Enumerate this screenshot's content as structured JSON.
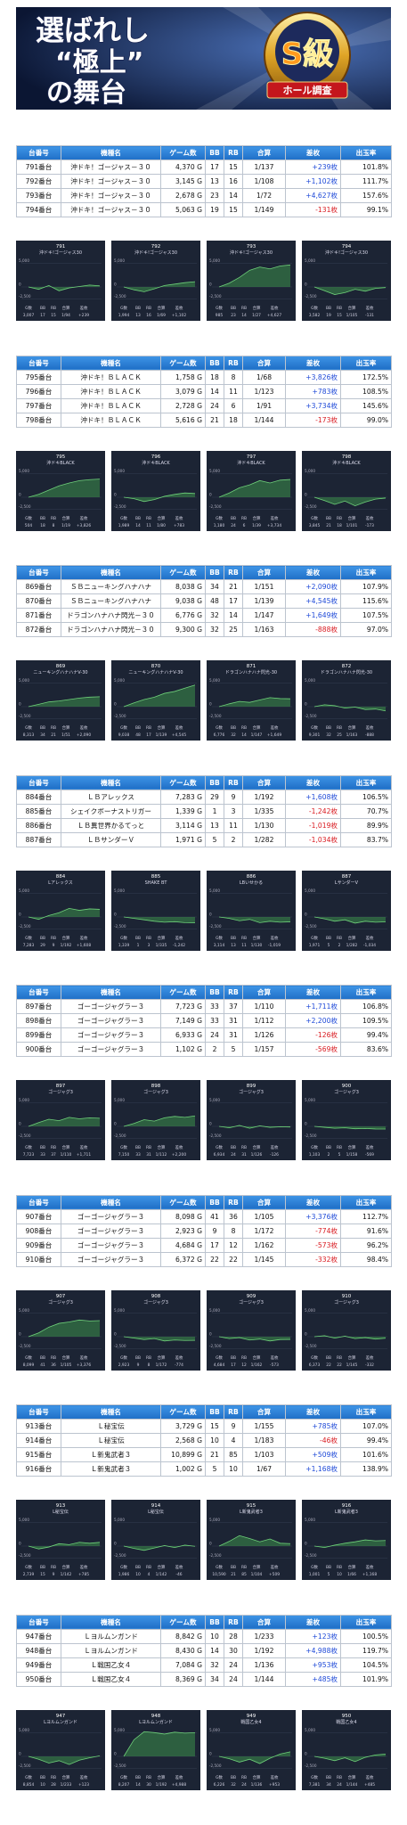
{
  "banner": {
    "line1": "選ばれし",
    "line2": "“極上”",
    "line3": "の舞台",
    "badge": "S級",
    "badge_sub": "ホール調査"
  },
  "table_header": [
    "台番号",
    "機種名",
    "ゲーム数",
    "BB",
    "RB",
    "合算",
    "差枚",
    "出玉率"
  ],
  "graph_footer_header": [
    "G数",
    "BB",
    "RB",
    "合算",
    "差枚"
  ],
  "graph_axis": {
    "ylim": [
      -3000,
      6000
    ],
    "yticks": [
      {
        "value": 5000,
        "label": "5,000"
      },
      0,
      {
        "value": -2500,
        "label": "-2,500"
      }
    ]
  },
  "groups": [
    {
      "rows": [
        [
          "791番台",
          "沖ドキ！ゴージャス－３０",
          "4,370 G",
          "17",
          "15",
          "1/137",
          "+239枚",
          "101.8%"
        ],
        [
          "792番台",
          "沖ドキ！ゴージャス－３０",
          "3,145 G",
          "13",
          "16",
          "1/108",
          "+1,102枚",
          "111.7%"
        ],
        [
          "793番台",
          "沖ドキ！ゴージャス－３０",
          "2,678 G",
          "23",
          "14",
          "1/72",
          "+4,627枚",
          "157.6%"
        ],
        [
          "794番台",
          "沖ドキ！ゴージャス－３０",
          "5,063 G",
          "19",
          "15",
          "1/149",
          "-131枚",
          "99.1%"
        ]
      ],
      "graphs": [
        {
          "id": "791",
          "name": "沖ドキ!ゴージャス30",
          "footer": [
            "3,007",
            "17",
            "15",
            "1/94",
            "+239"
          ],
          "line": [
            0,
            -500,
            300,
            -800,
            -200,
            100,
            400,
            239
          ]
        },
        {
          "id": "792",
          "name": "沖ドキ!ゴージャス30",
          "footer": [
            "1,994",
            "13",
            "16",
            "1/69",
            "+1,102"
          ],
          "line": [
            0,
            -600,
            -1000,
            -400,
            300,
            600,
            900,
            1102
          ]
        },
        {
          "id": "793",
          "name": "沖ドキ!ゴージャス30",
          "footer": [
            "985",
            "23",
            "14",
            "1/27",
            "+4,627"
          ],
          "line": [
            0,
            800,
            2000,
            3500,
            4200,
            3800,
            4400,
            4627
          ]
        },
        {
          "id": "794",
          "name": "沖ドキ!ゴージャス30",
          "footer": [
            "3,582",
            "19",
            "15",
            "1/105",
            "-131"
          ],
          "line": [
            0,
            -800,
            -1600,
            -1200,
            -500,
            -900,
            -300,
            -131
          ]
        }
      ]
    },
    {
      "rows": [
        [
          "795番台",
          "沖ドキ！ＢＬＡＣＫ",
          "1,758 G",
          "18",
          "8",
          "1/68",
          "+3,826枚",
          "172.5%"
        ],
        [
          "796番台",
          "沖ドキ！ＢＬＡＣＫ",
          "3,079 G",
          "14",
          "11",
          "1/123",
          "+783枚",
          "108.5%"
        ],
        [
          "797番台",
          "沖ドキ！ＢＬＡＣＫ",
          "2,728 G",
          "24",
          "6",
          "1/91",
          "+3,734枚",
          "145.6%"
        ],
        [
          "798番台",
          "沖ドキ！ＢＬＡＣＫ",
          "5,616 G",
          "21",
          "18",
          "1/144",
          "-173枚",
          "99.0%"
        ]
      ],
      "graphs": [
        {
          "id": "795",
          "name": "沖ドキBLACK",
          "footer": [
            "504",
            "18",
            "8",
            "1/19",
            "+3,826"
          ],
          "line": [
            0,
            600,
            1500,
            2400,
            3000,
            3500,
            3700,
            3826
          ]
        },
        {
          "id": "796",
          "name": "沖ドキBLACK",
          "footer": [
            "1,989",
            "14",
            "11",
            "1/80",
            "+783"
          ],
          "line": [
            0,
            -300,
            -900,
            -500,
            200,
            600,
            900,
            783
          ]
        },
        {
          "id": "797",
          "name": "沖ドキBLACK",
          "footer": [
            "1,180",
            "24",
            "6",
            "1/39",
            "+3,734"
          ],
          "line": [
            0,
            900,
            2000,
            2600,
            3500,
            3000,
            3600,
            3734
          ]
        },
        {
          "id": "798",
          "name": "沖ドキBLACK",
          "footer": [
            "3,845",
            "21",
            "18",
            "1/101",
            "-173"
          ],
          "line": [
            0,
            -700,
            -1500,
            -800,
            -1800,
            -1000,
            -400,
            -173
          ]
        }
      ]
    },
    {
      "rows": [
        [
          "869番台",
          "ＳＢニューキングハナハナ",
          "8,038 G",
          "34",
          "21",
          "1/151",
          "+2,090枚",
          "107.9%"
        ],
        [
          "870番台",
          "ＳＢニューキングハナハナ",
          "9,038 G",
          "48",
          "17",
          "1/139",
          "+4,545枚",
          "115.6%"
        ],
        [
          "871番台",
          "ドラゴンハナハナ閃光－３０",
          "6,776 G",
          "32",
          "14",
          "1/147",
          "+1,649枚",
          "107.5%"
        ],
        [
          "872番台",
          "ドラゴンハナハナ閃光－３０",
          "9,300 G",
          "32",
          "25",
          "1/163",
          "-888枚",
          "97.0%"
        ]
      ],
      "graphs": [
        {
          "id": "869",
          "name": "ニューキングハナハナV-30",
          "footer": [
            "8,313",
            "34",
            "21",
            "1/51",
            "+2,090"
          ],
          "line": [
            0,
            500,
            1000,
            1200,
            1500,
            1800,
            2000,
            2090
          ]
        },
        {
          "id": "870",
          "name": "ニューキングハナハナV-30",
          "footer": [
            "9,038",
            "48",
            "17",
            "1/139",
            "+4,545"
          ],
          "line": [
            0,
            800,
            1500,
            2000,
            2800,
            3200,
            3900,
            4545
          ]
        },
        {
          "id": "871",
          "name": "ドラゴンハナハナ閃光-30",
          "footer": [
            "6,776",
            "32",
            "14",
            "1/147",
            "+1,649"
          ],
          "line": [
            0,
            600,
            1100,
            900,
            1400,
            1900,
            1700,
            1649
          ]
        },
        {
          "id": "872",
          "name": "ドラゴンハナハナ閃光-30",
          "footer": [
            "9,301",
            "32",
            "25",
            "1/163",
            "-888"
          ],
          "line": [
            0,
            400,
            200,
            -300,
            -100,
            -600,
            -500,
            -888
          ]
        }
      ]
    },
    {
      "rows": [
        [
          "884番台",
          "ＬＢアレックス",
          "7,283 G",
          "29",
          "9",
          "1/192",
          "+1,608枚",
          "106.5%"
        ],
        [
          "885番台",
          "シェイクボーナストリガー",
          "1,339 G",
          "1",
          "3",
          "1/335",
          "-1,242枚",
          "70.7%"
        ],
        [
          "886番台",
          "ＬＢ異世界かるてっと",
          "3,114 G",
          "13",
          "11",
          "1/130",
          "-1,019枚",
          "89.9%"
        ],
        [
          "887番台",
          "ＬＢサンダーＶ",
          "1,971 G",
          "5",
          "2",
          "1/282",
          "-1,034枚",
          "83.7%"
        ]
      ],
      "graphs": [
        {
          "id": "884",
          "name": "Lアレックス",
          "footer": [
            "7,283",
            "29",
            "9",
            "1/192",
            "+1,608"
          ],
          "line": [
            0,
            -500,
            300,
            900,
            1800,
            1400,
            1700,
            1608
          ]
        },
        {
          "id": "885",
          "name": "SHAKE BT",
          "footer": [
            "1,339",
            "1",
            "3",
            "1/335",
            "-1,242"
          ],
          "line": [
            0,
            -300,
            -600,
            -900,
            -1100,
            -1000,
            -1200,
            -1242
          ]
        },
        {
          "id": "886",
          "name": "LBいせかる",
          "footer": [
            "3,114",
            "13",
            "11",
            "1/130",
            "-1,019"
          ],
          "line": [
            0,
            -300,
            -800,
            -500,
            -1200,
            -900,
            -1100,
            -1019
          ]
        },
        {
          "id": "887",
          "name": "LサンダーV",
          "footer": [
            "1,971",
            "5",
            "2",
            "1/282",
            "-1,034"
          ],
          "line": [
            0,
            -400,
            -900,
            -600,
            -1300,
            -900,
            -1100,
            -1034
          ]
        }
      ]
    },
    {
      "rows": [
        [
          "897番台",
          "ゴーゴージャグラー３",
          "7,723 G",
          "33",
          "37",
          "1/110",
          "+1,711枚",
          "106.8%"
        ],
        [
          "898番台",
          "ゴーゴージャグラー３",
          "7,149 G",
          "33",
          "31",
          "1/112",
          "+2,200枚",
          "109.5%"
        ],
        [
          "899番台",
          "ゴーゴージャグラー３",
          "6,933 G",
          "24",
          "31",
          "1/126",
          "-126枚",
          "99.4%"
        ],
        [
          "900番台",
          "ゴーゴージャグラー３",
          "1,102 G",
          "2",
          "5",
          "1/157",
          "-569枚",
          "83.6%"
        ]
      ],
      "graphs": [
        {
          "id": "897",
          "name": "ゴージャグ3",
          "footer": [
            "7,723",
            "33",
            "37",
            "1/110",
            "+1,711"
          ],
          "line": [
            0,
            800,
            1500,
            1200,
            1900,
            1600,
            1800,
            1711
          ]
        },
        {
          "id": "898",
          "name": "ゴージャグ3",
          "footer": [
            "7,150",
            "33",
            "31",
            "1/112",
            "+2,200"
          ],
          "line": [
            0,
            600,
            1400,
            1100,
            1800,
            2100,
            1900,
            2200
          ]
        },
        {
          "id": "899",
          "name": "ゴージャグ3",
          "footer": [
            "6,934",
            "24",
            "31",
            "1/126",
            "-126"
          ],
          "line": [
            0,
            -300,
            200,
            -400,
            100,
            -200,
            -100,
            -126
          ]
        },
        {
          "id": "900",
          "name": "ゴージャグ3",
          "footer": [
            "1,103",
            "2",
            "5",
            "1/158",
            "-569"
          ],
          "line": [
            0,
            -200,
            -400,
            -300,
            -500,
            -450,
            -550,
            -569
          ]
        }
      ]
    },
    {
      "rows": [
        [
          "907番台",
          "ゴーゴージャグラー３",
          "8,098 G",
          "41",
          "36",
          "1/105",
          "+3,376枚",
          "112.7%"
        ],
        [
          "908番台",
          "ゴーゴージャグラー３",
          "2,923 G",
          "9",
          "8",
          "1/172",
          "-774枚",
          "91.6%"
        ],
        [
          "909番台",
          "ゴーゴージャグラー３",
          "4,684 G",
          "17",
          "12",
          "1/162",
          "-573枚",
          "96.2%"
        ],
        [
          "910番台",
          "ゴーゴージャグラー３",
          "6,372 G",
          "22",
          "22",
          "1/145",
          "-332枚",
          "98.4%"
        ]
      ],
      "graphs": [
        {
          "id": "907",
          "name": "ゴージャグ3",
          "footer": [
            "8,099",
            "41",
            "36",
            "1/105",
            "+3,376"
          ],
          "line": [
            0,
            800,
            2000,
            2800,
            3100,
            3500,
            3300,
            3376
          ]
        },
        {
          "id": "908",
          "name": "ゴージャグ3",
          "footer": [
            "2,923",
            "9",
            "8",
            "1/172",
            "-774"
          ],
          "line": [
            0,
            -300,
            -600,
            -400,
            -900,
            -700,
            -800,
            -774
          ]
        },
        {
          "id": "909",
          "name": "ゴージャグ3",
          "footer": [
            "4,684",
            "17",
            "12",
            "1/162",
            "-573"
          ],
          "line": [
            0,
            -400,
            -200,
            -700,
            -500,
            -900,
            -600,
            -573
          ]
        },
        {
          "id": "910",
          "name": "ゴージャグ3",
          "footer": [
            "6,373",
            "22",
            "22",
            "1/145",
            "-332"
          ],
          "line": [
            0,
            200,
            -300,
            100,
            -400,
            -200,
            -500,
            -332
          ]
        }
      ]
    },
    {
      "rows": [
        [
          "913番台",
          "Ｌ秘宝伝",
          "3,729 G",
          "15",
          "9",
          "1/155",
          "+785枚",
          "107.0%"
        ],
        [
          "914番台",
          "Ｌ秘宝伝",
          "2,568 G",
          "10",
          "4",
          "1/183",
          "-46枚",
          "99.4%"
        ],
        [
          "915番台",
          "Ｌ新鬼武者３",
          "10,899 G",
          "21",
          "85",
          "1/103",
          "+509枚",
          "101.6%"
        ],
        [
          "916番台",
          "Ｌ新鬼武者３",
          "1,002 G",
          "5",
          "10",
          "1/67",
          "+1,168枚",
          "138.9%"
        ]
      ],
      "graphs": [
        {
          "id": "913",
          "name": "L秘宝伝",
          "footer": [
            "2,739",
            "15",
            "9",
            "1/142",
            "+785"
          ],
          "line": [
            0,
            -600,
            -200,
            500,
            300,
            800,
            600,
            785
          ]
        },
        {
          "id": "914",
          "name": "L秘宝伝",
          "footer": [
            "1,986",
            "10",
            "4",
            "1/142",
            "-46"
          ],
          "line": [
            0,
            -500,
            -900,
            -400,
            100,
            -300,
            200,
            -46
          ]
        },
        {
          "id": "915",
          "name": "L新鬼武者3",
          "footer": [
            "10,590",
            "21",
            "85",
            "1/104",
            "+509"
          ],
          "line": [
            0,
            1000,
            2200,
            1600,
            900,
            1500,
            600,
            509
          ]
        },
        {
          "id": "916",
          "name": "L新鬼武者3",
          "footer": [
            "1,001",
            "5",
            "10",
            "1/66",
            "+1,168"
          ],
          "line": [
            0,
            -300,
            200,
            600,
            900,
            1300,
            1100,
            1168
          ]
        }
      ]
    },
    {
      "rows": [
        [
          "947番台",
          "Ｌヨルムンガンド",
          "8,842 G",
          "10",
          "28",
          "1/233",
          "+123枚",
          "100.5%"
        ],
        [
          "948番台",
          "Ｌヨルムンガンド",
          "8,430 G",
          "14",
          "30",
          "1/192",
          "+4,988枚",
          "119.7%"
        ],
        [
          "949番台",
          "Ｌ戦国乙女４",
          "7,084 G",
          "32",
          "24",
          "1/136",
          "+953枚",
          "104.5%"
        ],
        [
          "950番台",
          "Ｌ戦国乙女４",
          "8,369 G",
          "34",
          "24",
          "1/144",
          "+485枚",
          "101.9%"
        ]
      ],
      "graphs": [
        {
          "id": "947",
          "name": "Lヨルムンガンド",
          "footer": [
            "8,854",
            "10",
            "28",
            "1/233",
            "+123"
          ],
          "line": [
            0,
            -600,
            -1400,
            -900,
            -1700,
            -800,
            -300,
            123
          ]
        },
        {
          "id": "948",
          "name": "Lヨルムンガンド",
          "footer": [
            "8,207",
            "14",
            "30",
            "1/192",
            "+4,988"
          ],
          "line": [
            0,
            3500,
            5200,
            5000,
            4700,
            5100,
            4900,
            4988
          ]
        },
        {
          "id": "949",
          "name": "戦国乙女4",
          "footer": [
            "6,226",
            "32",
            "24",
            "1/136",
            "+953"
          ],
          "line": [
            0,
            -500,
            -1200,
            -600,
            -1500,
            -400,
            500,
            953
          ]
        },
        {
          "id": "950",
          "name": "戦国乙女4",
          "footer": [
            "7,381",
            "34",
            "24",
            "1/144",
            "+485"
          ],
          "line": [
            0,
            -400,
            -900,
            -300,
            -1100,
            -200,
            300,
            485
          ]
        }
      ]
    }
  ]
}
